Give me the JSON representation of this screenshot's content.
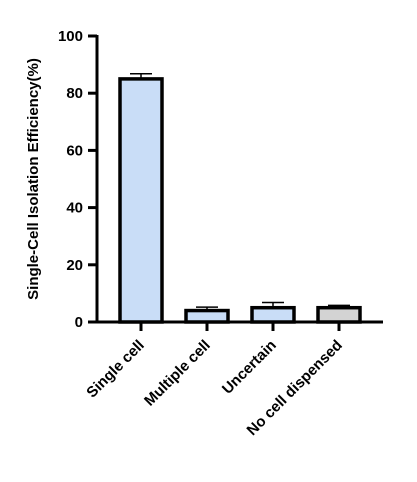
{
  "chart_data": {
    "type": "bar",
    "title": "",
    "xlabel": "",
    "ylabel": "Single-Cell Isolation Efficiency(%)",
    "ylim": [
      0,
      100
    ],
    "yticks": [
      0,
      20,
      40,
      60,
      80,
      100
    ],
    "categories": [
      "Single cell",
      "Multiple cell",
      "Uncertain",
      "No cell dispensed"
    ],
    "values": [
      85,
      4,
      5,
      5
    ],
    "errors": [
      1.8,
      1.2,
      1.8,
      0.8
    ],
    "bar_colors": [
      "#c9ddf7",
      "#c9ddf7",
      "#c9ddf7",
      "#d3d3d3"
    ],
    "grid": false,
    "legend": "none"
  }
}
